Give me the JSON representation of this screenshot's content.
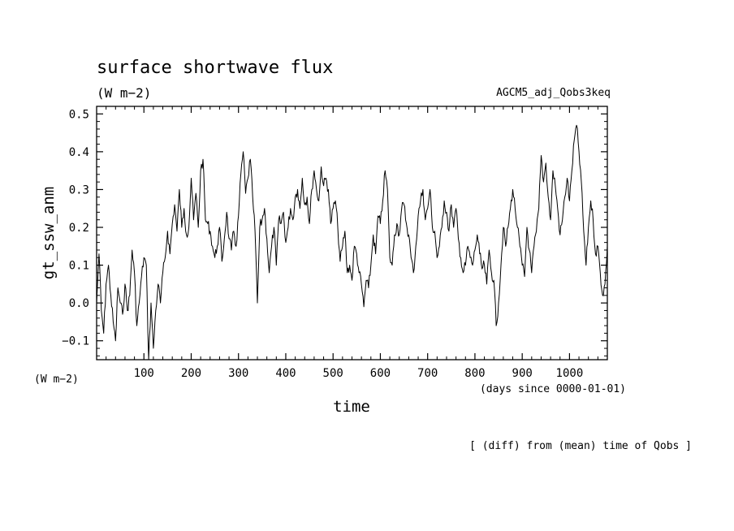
{
  "figure": {
    "title": "surface shortwave flux",
    "title_units": "(W m−2)",
    "experiment": "AGCM5_adj_Qobs3keq",
    "y_axis_units": "(W m−2)",
    "x_axis_units": "(days since 0000-01-01)",
    "xlabel": "time",
    "ylabel": "gt_ssw_anm",
    "footnote": "[ (diff) from (mean) time of Qobs ]"
  },
  "chart_data": {
    "type": "line",
    "title": "surface shortwave flux",
    "xlabel": "time",
    "ylabel": "gt_ssw_anm",
    "xlim": [
      0,
      1080
    ],
    "ylim": [
      -0.15,
      0.52
    ],
    "x_ticks": [
      100,
      200,
      300,
      400,
      500,
      600,
      700,
      800,
      900,
      1000
    ],
    "y_ticks": [
      -0.1,
      0.0,
      0.1,
      0.2,
      0.3,
      0.4,
      0.5
    ],
    "x_tick_labels": [
      "100",
      "200",
      "300",
      "400",
      "500",
      "600",
      "700",
      "800",
      "900",
      "1000"
    ],
    "y_tick_labels": [
      "−0.1",
      "0.0",
      "0.1",
      "0.2",
      "0.3",
      "0.4",
      "0.5"
    ],
    "grid": false,
    "series": [
      {
        "color": "#000000",
        "x": [
          0,
          5,
          10,
          15,
          20,
          25,
          30,
          35,
          40,
          45,
          50,
          55,
          60,
          65,
          70,
          75,
          80,
          85,
          90,
          95,
          100,
          105,
          110,
          115,
          120,
          125,
          130,
          135,
          140,
          145,
          150,
          155,
          160,
          165,
          170,
          175,
          180,
          185,
          190,
          195,
          200,
          205,
          210,
          215,
          220,
          225,
          230,
          235,
          240,
          245,
          250,
          255,
          260,
          265,
          270,
          275,
          280,
          285,
          290,
          295,
          300,
          305,
          310,
          315,
          320,
          325,
          330,
          335,
          340,
          345,
          350,
          355,
          360,
          365,
          370,
          375,
          380,
          385,
          390,
          395,
          400,
          405,
          410,
          415,
          420,
          425,
          430,
          435,
          440,
          445,
          450,
          455,
          460,
          465,
          470,
          475,
          480,
          485,
          490,
          495,
          500,
          505,
          510,
          515,
          520,
          525,
          530,
          535,
          540,
          545,
          550,
          555,
          560,
          565,
          570,
          575,
          580,
          585,
          590,
          595,
          600,
          605,
          610,
          615,
          620,
          625,
          630,
          635,
          640,
          645,
          650,
          655,
          660,
          665,
          670,
          675,
          680,
          685,
          690,
          695,
          700,
          705,
          710,
          715,
          720,
          725,
          730,
          735,
          740,
          745,
          750,
          755,
          760,
          765,
          770,
          775,
          780,
          785,
          790,
          795,
          800,
          805,
          810,
          815,
          820,
          825,
          830,
          835,
          840,
          845,
          850,
          855,
          860,
          865,
          870,
          875,
          880,
          885,
          890,
          895,
          900,
          905,
          910,
          915,
          920,
          925,
          930,
          935,
          940,
          945,
          950,
          955,
          960,
          965,
          970,
          975,
          980,
          985,
          990,
          995,
          1000,
          1005,
          1010,
          1015,
          1020,
          1025,
          1030,
          1035,
          1040,
          1045,
          1050,
          1055,
          1060,
          1065,
          1070,
          1075,
          1080
        ],
        "y": [
          0.0,
          0.13,
          -0.02,
          -0.08,
          0.05,
          0.1,
          0.02,
          -0.05,
          -0.1,
          0.04,
          0.0,
          -0.03,
          0.05,
          -0.02,
          0.02,
          0.14,
          0.08,
          -0.06,
          0.0,
          0.07,
          0.12,
          0.1,
          -0.15,
          0.0,
          -0.12,
          -0.02,
          0.05,
          0.0,
          0.08,
          0.12,
          0.19,
          0.13,
          0.21,
          0.26,
          0.19,
          0.3,
          0.2,
          0.25,
          0.18,
          0.2,
          0.33,
          0.22,
          0.29,
          0.2,
          0.35,
          0.38,
          0.22,
          0.21,
          0.19,
          0.15,
          0.12,
          0.15,
          0.2,
          0.11,
          0.17,
          0.24,
          0.17,
          0.14,
          0.19,
          0.15,
          0.23,
          0.34,
          0.4,
          0.29,
          0.33,
          0.38,
          0.28,
          0.19,
          0.0,
          0.2,
          0.22,
          0.25,
          0.17,
          0.08,
          0.15,
          0.2,
          0.1,
          0.22,
          0.21,
          0.24,
          0.16,
          0.2,
          0.25,
          0.22,
          0.28,
          0.3,
          0.25,
          0.33,
          0.26,
          0.28,
          0.21,
          0.3,
          0.35,
          0.3,
          0.27,
          0.36,
          0.31,
          0.33,
          0.3,
          0.21,
          0.25,
          0.27,
          0.2,
          0.11,
          0.15,
          0.19,
          0.08,
          0.1,
          0.06,
          0.15,
          0.13,
          0.08,
          0.05,
          -0.01,
          0.06,
          0.04,
          0.1,
          0.18,
          0.13,
          0.23,
          0.21,
          0.27,
          0.35,
          0.3,
          0.12,
          0.1,
          0.18,
          0.21,
          0.18,
          0.25,
          0.26,
          0.21,
          0.18,
          0.12,
          0.08,
          0.15,
          0.23,
          0.27,
          0.3,
          0.22,
          0.25,
          0.3,
          0.2,
          0.19,
          0.12,
          0.15,
          0.2,
          0.27,
          0.24,
          0.19,
          0.26,
          0.2,
          0.25,
          0.17,
          0.12,
          0.08,
          0.1,
          0.15,
          0.12,
          0.1,
          0.14,
          0.18,
          0.13,
          0.09,
          0.1,
          0.05,
          0.14,
          0.08,
          0.06,
          -0.06,
          0.0,
          0.1,
          0.2,
          0.15,
          0.2,
          0.25,
          0.3,
          0.25,
          0.2,
          0.15,
          0.1,
          0.07,
          0.2,
          0.14,
          0.08,
          0.15,
          0.19,
          0.25,
          0.39,
          0.32,
          0.37,
          0.28,
          0.22,
          0.35,
          0.31,
          0.25,
          0.18,
          0.22,
          0.28,
          0.33,
          0.27,
          0.35,
          0.43,
          0.47,
          0.4,
          0.32,
          0.19,
          0.1,
          0.2,
          0.27,
          0.22,
          0.13,
          0.15,
          0.08,
          0.02,
          0.05,
          0.15
        ]
      }
    ]
  }
}
